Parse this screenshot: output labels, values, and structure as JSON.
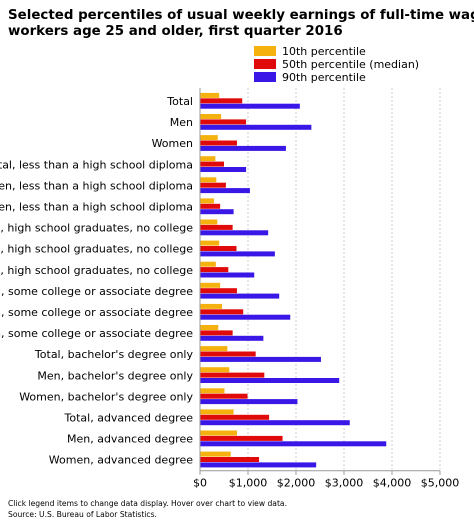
{
  "chart_data": {
    "type": "bar",
    "orientation": "horizontal",
    "title_lines": [
      "Selected percentiles of usual weekly earnings of full-time wage and sal",
      "workers age 25 and older, first quarter 2016"
    ],
    "categories": [
      "Total",
      "Men",
      "Women",
      "Total, less than a high school diploma",
      "Men, less than a high school diploma",
      "Women, less than a high school diploma",
      "Total, high school graduates, no college",
      "Men, high school graduates, no college",
      "Women, high school graduates, no college",
      "Total, some college or associate degree",
      "Men, some college or associate degree",
      "Women, some college or associate degree",
      "Total, bachelor's degree only",
      "Men, bachelor's degree only",
      "Women, bachelor's degree only",
      "Total, advanced degree",
      "Men, advanced degree",
      "Women, advanced degree"
    ],
    "series": [
      {
        "name": "10th percentile",
        "color": "#f5b20e",
        "values": [
          400,
          440,
          370,
          320,
          340,
          290,
          360,
          400,
          330,
          420,
          460,
          380,
          570,
          610,
          510,
          700,
          770,
          640
        ]
      },
      {
        "name": "50th percentile (median)",
        "color": "#e00a0a",
        "values": [
          880,
          960,
          770,
          500,
          540,
          420,
          680,
          760,
          590,
          770,
          900,
          680,
          1160,
          1340,
          990,
          1440,
          1720,
          1230
        ]
      },
      {
        "name": "90th percentile",
        "color": "#3a17e6",
        "values": [
          2080,
          2320,
          1790,
          960,
          1040,
          700,
          1420,
          1560,
          1130,
          1650,
          1880,
          1320,
          2520,
          2900,
          2030,
          3120,
          3880,
          2420
        ]
      }
    ],
    "x_ticks": [
      "$0",
      "$1,000",
      "$2,000",
      "$3,000",
      "$4,000",
      "$5,000"
    ],
    "x_tick_values": [
      0,
      1000,
      2000,
      3000,
      4000,
      5000
    ],
    "xlim": [
      0,
      5000
    ],
    "grid": true,
    "legend_position": "top-right"
  },
  "footer": {
    "note": "Click legend items to change data display. Hover over chart to view data.",
    "source": "Source: U.S. Bureau of Labor Statistics."
  }
}
